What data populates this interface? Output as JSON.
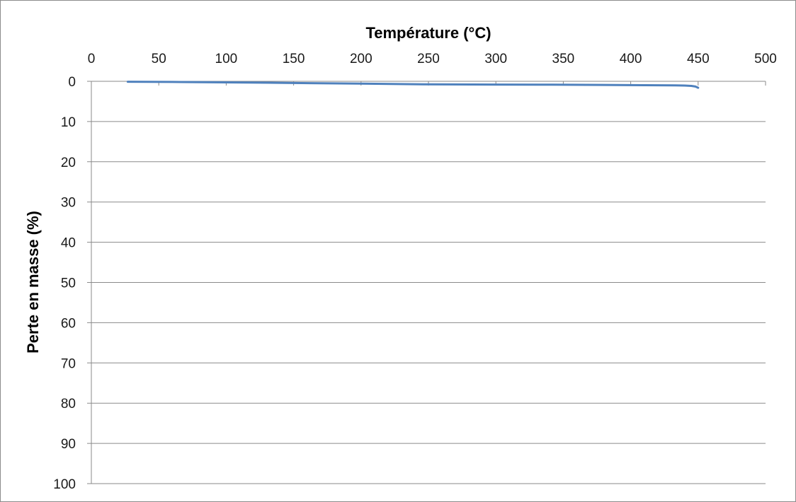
{
  "chart_data": {
    "type": "line",
    "title": "",
    "xlabel": "Température (°C)",
    "ylabel": "Perte en masse (%)",
    "xlim": [
      0,
      500
    ],
    "ylim": [
      0,
      100
    ],
    "y_inverted": true,
    "x_axis_position": "top",
    "x_ticks": [
      0,
      50,
      100,
      150,
      200,
      250,
      300,
      350,
      400,
      450,
      500
    ],
    "y_ticks": [
      0,
      10,
      20,
      30,
      40,
      50,
      60,
      70,
      80,
      90,
      100
    ],
    "grid": "horizontal",
    "legend": "none",
    "series": [
      {
        "color": "#4f81bd",
        "x": [
          27,
          60,
          117,
          162,
          205,
          246,
          300,
          342,
          380,
          433,
          440,
          445,
          448,
          450
        ],
        "y": [
          0.1,
          0.15,
          0.3,
          0.45,
          0.6,
          0.75,
          0.8,
          0.85,
          0.9,
          1.0,
          1.05,
          1.15,
          1.3,
          1.6
        ]
      }
    ]
  }
}
